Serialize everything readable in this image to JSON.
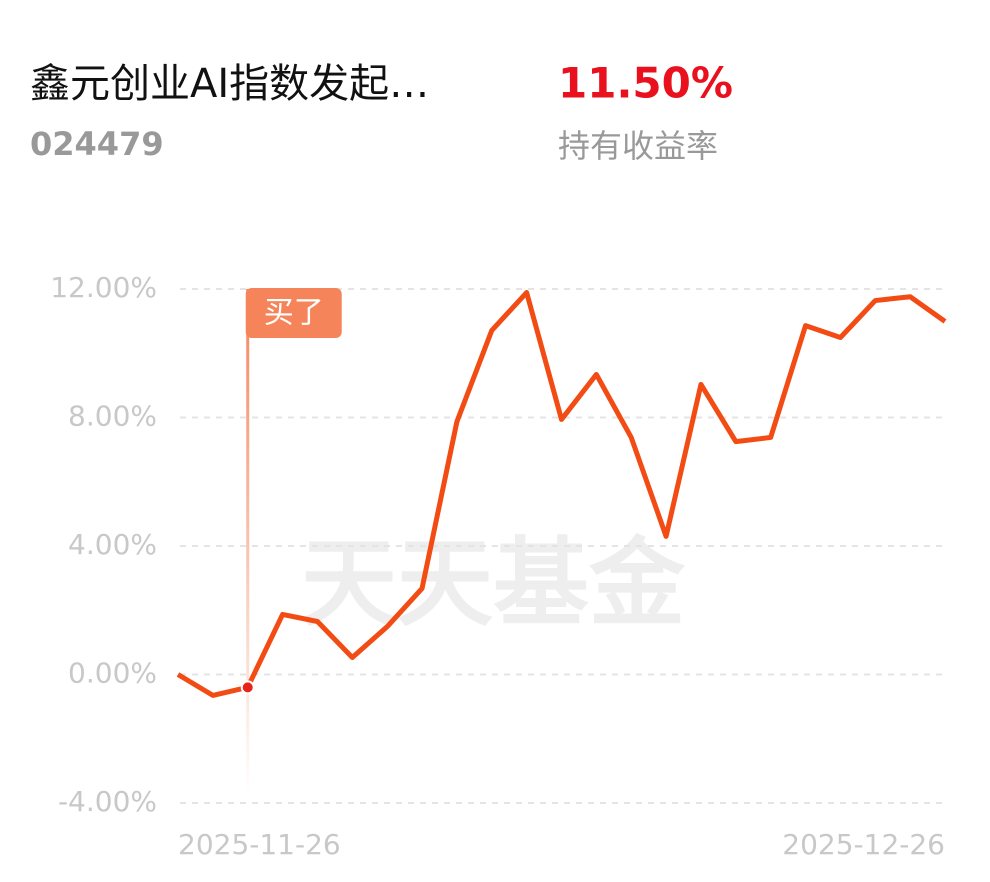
{
  "header": {
    "title": "鑫元创业AI指数发起…",
    "code": "024479",
    "holding_return": "11.50%",
    "holding_return_label": "持有收益率"
  },
  "chart_data": {
    "type": "line",
    "watermark": "天天基金",
    "categories": [
      "2025-11-26",
      null,
      null,
      null,
      null,
      null,
      null,
      null,
      null,
      null,
      null,
      null,
      null,
      null,
      null,
      null,
      null,
      null,
      null,
      null,
      null,
      null,
      "2025-12-26"
    ],
    "series": [
      {
        "color": "#f24c14",
        "values": [
          0.0,
          -0.65,
          -0.4,
          1.87,
          1.65,
          0.53,
          1.49,
          2.68,
          7.87,
          10.71,
          11.89,
          7.94,
          9.34,
          7.38,
          4.3,
          9.03,
          7.25,
          7.38,
          10.86,
          10.49,
          11.64,
          11.76,
          10.99
        ]
      }
    ],
    "annotations": [
      {
        "text": "买了",
        "index": 2
      }
    ],
    "ylim": [
      -4,
      12
    ],
    "yticks": [
      {
        "value": -4,
        "label": "-4.00%"
      },
      {
        "value": 0,
        "label": "0.00%"
      },
      {
        "value": 4,
        "label": "4.00%"
      },
      {
        "value": 8,
        "label": "8.00%"
      },
      {
        "value": 12,
        "label": "12.00%"
      }
    ],
    "grid": true
  }
}
